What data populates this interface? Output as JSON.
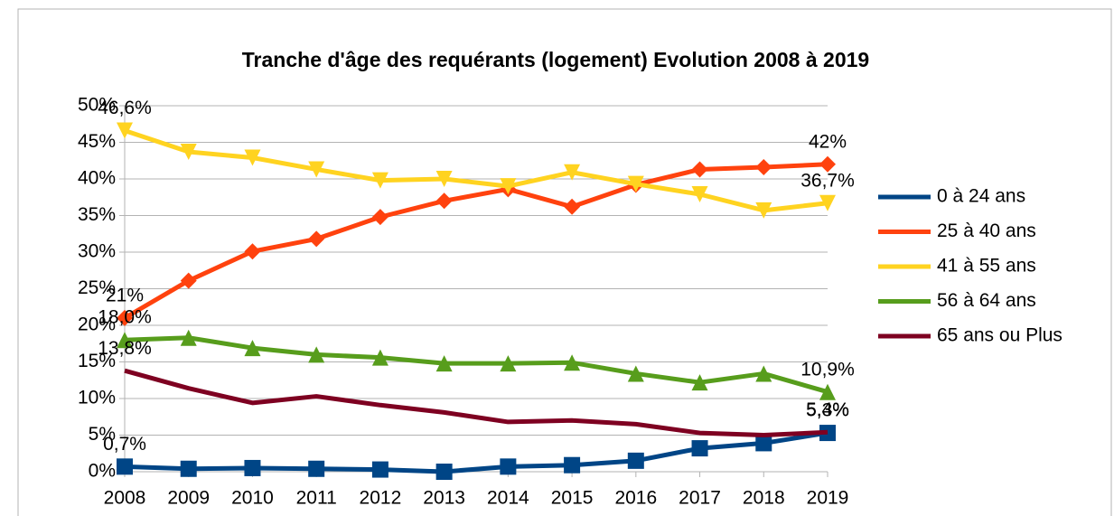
{
  "chart_data": {
    "type": "line",
    "title": "Tranche d'âge des requérants (logement) Evolution 2008 à 2019",
    "x": [
      2008,
      2009,
      2010,
      2011,
      2012,
      2013,
      2014,
      2015,
      2016,
      2017,
      2018,
      2019
    ],
    "xlim": [
      2008,
      2019
    ],
    "xticks": [
      2008,
      2009,
      2010,
      2011,
      2012,
      2013,
      2014,
      2015,
      2016,
      2017,
      2018,
      2019
    ],
    "ylim": [
      0,
      50
    ],
    "yticks": [
      {
        "value": 0,
        "label": "0%"
      },
      {
        "value": 5,
        "label": "5%"
      },
      {
        "value": 10,
        "label": "10%"
      },
      {
        "value": 15,
        "label": "15%"
      },
      {
        "value": 20,
        "label": "20%"
      },
      {
        "value": 25,
        "label": "25%"
      },
      {
        "value": 30,
        "label": "30%"
      },
      {
        "value": 35,
        "label": "35%"
      },
      {
        "value": 40,
        "label": "40%"
      },
      {
        "value": 45,
        "label": "45%"
      },
      {
        "value": 50,
        "label": "50%"
      }
    ],
    "grid": true,
    "legend": "right",
    "series": [
      {
        "name": "0 à 24 ans",
        "color": "#004586",
        "marker": "square",
        "values": [
          0.7,
          0.4,
          0.5,
          0.4,
          0.3,
          0.0,
          0.7,
          0.9,
          1.5,
          3.2,
          3.9,
          5.3
        ],
        "value_labels": [
          "0,7%",
          null,
          null,
          null,
          null,
          null,
          null,
          null,
          null,
          null,
          null,
          "5,3%"
        ]
      },
      {
        "name": "25 à 40 ans",
        "color": "#ff420e",
        "marker": "diamond",
        "values": [
          21,
          26.1,
          30.1,
          31.8,
          34.8,
          37.0,
          38.6,
          36.2,
          39.2,
          41.3,
          41.6,
          42
        ],
        "value_labels": [
          "21%",
          null,
          null,
          null,
          null,
          null,
          null,
          null,
          null,
          null,
          null,
          "42%"
        ]
      },
      {
        "name": "41 à 55 ans",
        "color": "#ffd320",
        "marker": "triangle-down",
        "values": [
          46.6,
          43.7,
          42.9,
          41.3,
          39.8,
          40.0,
          39.0,
          40.9,
          39.3,
          37.9,
          35.7,
          36.7
        ],
        "value_labels": [
          "46,6%",
          null,
          null,
          null,
          null,
          null,
          null,
          null,
          null,
          null,
          null,
          "36,7%"
        ]
      },
      {
        "name": "56 à 64 ans",
        "color": "#579d1c",
        "marker": "triangle-up",
        "values": [
          18.0,
          18.3,
          16.9,
          16.0,
          15.6,
          14.8,
          14.8,
          14.9,
          13.4,
          12.2,
          13.4,
          10.9
        ],
        "value_labels": [
          "18,0%",
          null,
          null,
          null,
          null,
          null,
          null,
          null,
          null,
          null,
          null,
          "10,9%"
        ]
      },
      {
        "name": "65 ans ou Plus",
        "color": "#7e0021",
        "marker": "none",
        "values": [
          13.8,
          11.4,
          9.4,
          10.3,
          9.1,
          8.1,
          6.8,
          7.0,
          6.5,
          5.3,
          5.0,
          5.4
        ],
        "value_labels": [
          "13,8%",
          null,
          null,
          null,
          null,
          null,
          null,
          null,
          null,
          null,
          null,
          "5,4%"
        ]
      }
    ]
  }
}
